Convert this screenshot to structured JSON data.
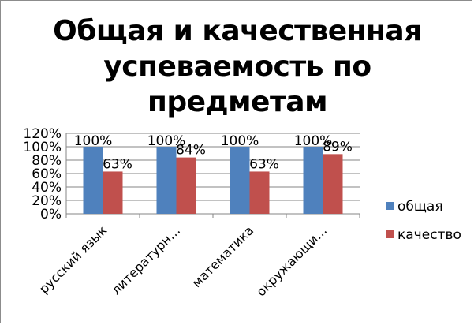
{
  "chart_data": {
    "type": "bar",
    "title": "Общая и качественная успеваемость по предметам",
    "categories": [
      "русский язык",
      "литературн…",
      "математика",
      "окружающи…"
    ],
    "series": [
      {
        "name": "общая",
        "values": [
          100,
          100,
          100,
          100
        ],
        "labels": [
          "100%",
          "100%",
          "100%",
          "100%"
        ],
        "color": "#4f81bd"
      },
      {
        "name": "качество",
        "values": [
          63,
          84,
          63,
          89
        ],
        "labels": [
          "63%",
          "84%",
          "63%",
          "89%"
        ],
        "color": "#c0504d"
      }
    ],
    "ylim": [
      0,
      120
    ],
    "yticks": [
      0,
      20,
      40,
      60,
      80,
      100,
      120
    ],
    "ytick_labels": [
      "0%",
      "20%",
      "40%",
      "60%",
      "80%",
      "100%",
      "120%"
    ],
    "grid": true,
    "legend": "right"
  }
}
